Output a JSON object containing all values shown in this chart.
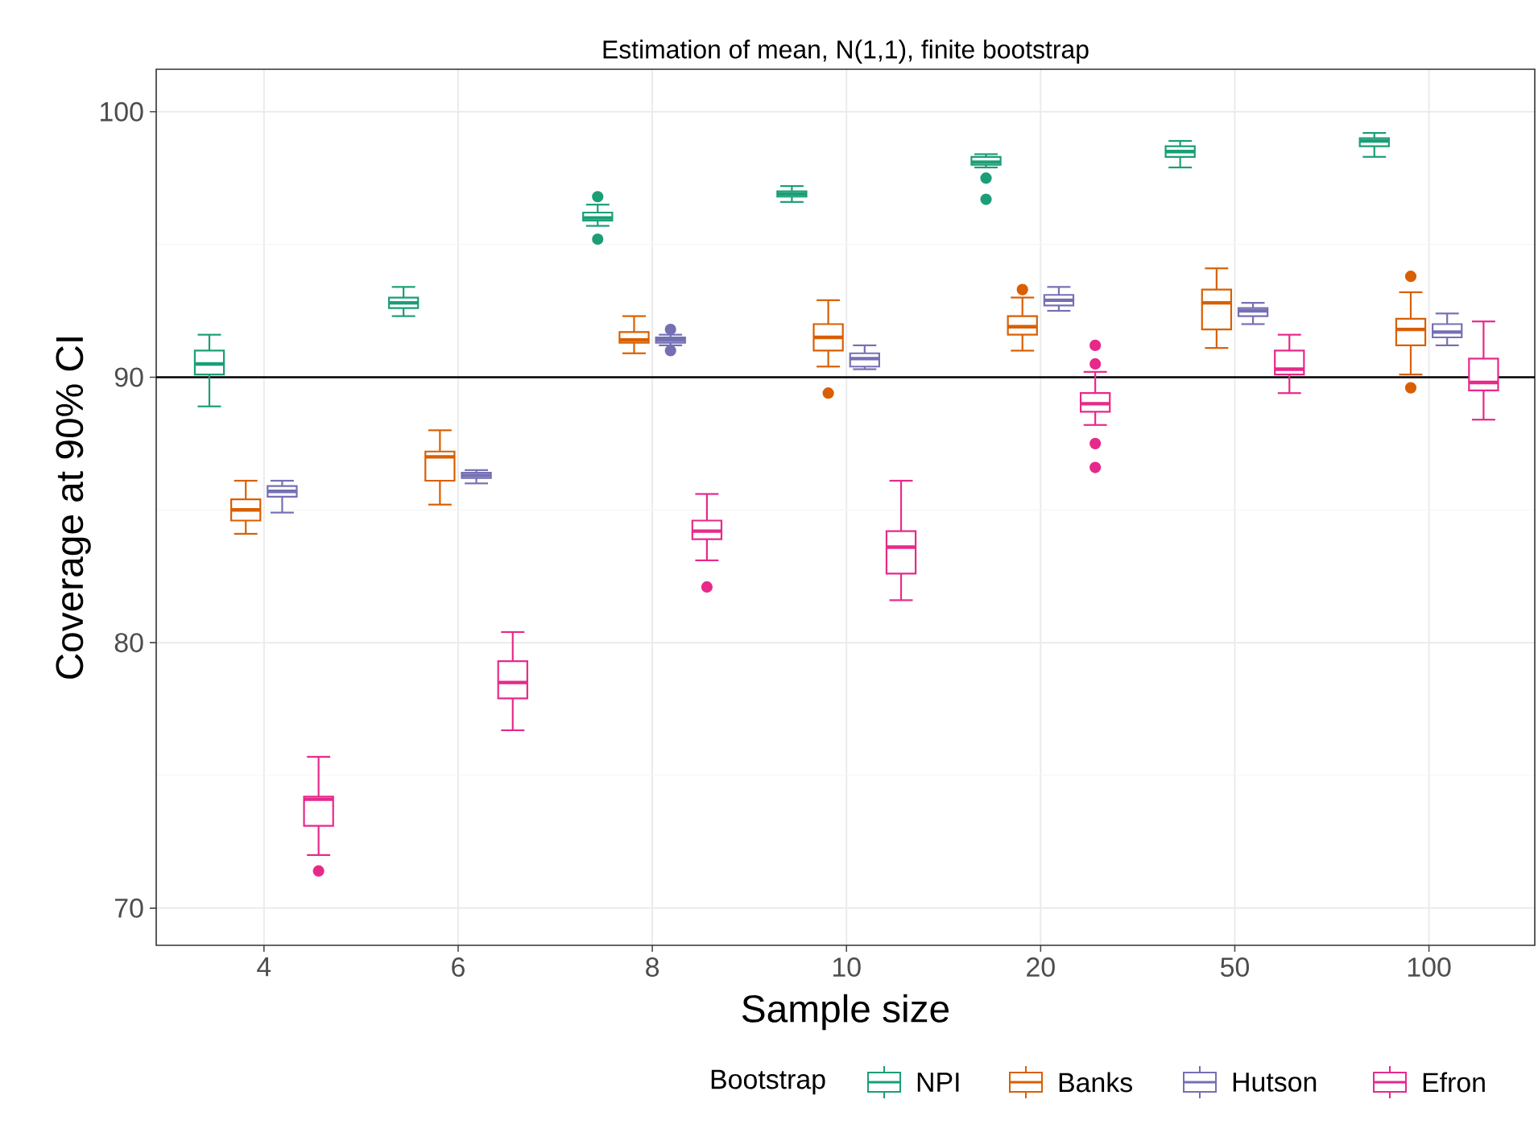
{
  "chart_data": {
    "type": "box",
    "title": "Estimation of mean, N(1,1), finite bootstrap",
    "xlabel": "Sample size",
    "ylabel": "Coverage at 90% CI",
    "legend_title": "Bootstrap",
    "legend": "bottom",
    "grid": true,
    "categories": [
      "4",
      "6",
      "8",
      "10",
      "20",
      "50",
      "100"
    ],
    "ylim": [
      68.6,
      101.6
    ],
    "yticks": [
      70,
      {
        "value": 75,
        "label": null
      },
      80,
      {
        "value": 85,
        "label": null
      },
      90,
      {
        "value": 95,
        "label": null
      },
      100
    ],
    "ref_lines": [
      {
        "axis": "y",
        "value": 90,
        "color": "#000000"
      }
    ],
    "series": [
      {
        "name": "NPI",
        "color": "#1b9e77",
        "boxes": [
          {
            "low": 88.9,
            "q1": 90.1,
            "median": 90.5,
            "q3": 91.0,
            "high": 91.6
          },
          {
            "low": 92.3,
            "q1": 92.6,
            "median": 92.8,
            "q3": 93.0,
            "high": 93.4
          },
          {
            "low": 95.7,
            "q1": 95.9,
            "median": 96.0,
            "q3": 96.2,
            "high": 96.5,
            "outliers": [
              96.8,
              95.2
            ]
          },
          {
            "low": 96.6,
            "q1": 96.8,
            "median": 96.9,
            "q3": 97.0,
            "high": 97.2
          },
          {
            "low": 97.9,
            "q1": 98.0,
            "median": 98.1,
            "q3": 98.3,
            "high": 98.4,
            "outliers": [
              97.5,
              96.7
            ]
          },
          {
            "low": 97.9,
            "q1": 98.3,
            "median": 98.5,
            "q3": 98.7,
            "high": 98.9
          },
          {
            "low": 98.3,
            "q1": 98.7,
            "median": 98.9,
            "q3": 99.0,
            "high": 99.2
          }
        ]
      },
      {
        "name": "Banks",
        "color": "#d95f02",
        "boxes": [
          {
            "low": 84.1,
            "q1": 84.6,
            "median": 85.0,
            "q3": 85.4,
            "high": 86.1
          },
          {
            "low": 85.2,
            "q1": 86.1,
            "median": 87.0,
            "q3": 87.2,
            "high": 88.0
          },
          {
            "low": 90.9,
            "q1": 91.3,
            "median": 91.4,
            "q3": 91.7,
            "high": 92.3
          },
          {
            "low": 90.4,
            "q1": 91.0,
            "median": 91.5,
            "q3": 92.0,
            "high": 92.9,
            "outliers": [
              89.4
            ]
          },
          {
            "low": 91.0,
            "q1": 91.6,
            "median": 91.9,
            "q3": 92.3,
            "high": 93.0,
            "outliers": [
              93.3
            ]
          },
          {
            "low": 91.1,
            "q1": 91.8,
            "median": 92.8,
            "q3": 93.3,
            "high": 94.1
          },
          {
            "low": 90.1,
            "q1": 91.2,
            "median": 91.8,
            "q3": 92.2,
            "high": 93.2,
            "outliers": [
              93.8,
              89.6
            ]
          }
        ]
      },
      {
        "name": "Hutson",
        "color": "#7570b3",
        "boxes": [
          {
            "low": 84.9,
            "q1": 85.5,
            "median": 85.7,
            "q3": 85.9,
            "high": 86.1
          },
          {
            "low": 86.0,
            "q1": 86.2,
            "median": 86.3,
            "q3": 86.4,
            "high": 86.5
          },
          {
            "low": 91.2,
            "q1": 91.3,
            "median": 91.4,
            "q3": 91.5,
            "high": 91.6,
            "outliers": [
              91.8,
              91.0
            ]
          },
          {
            "low": 90.3,
            "q1": 90.4,
            "median": 90.7,
            "q3": 90.9,
            "high": 91.2
          },
          {
            "low": 92.5,
            "q1": 92.7,
            "median": 92.9,
            "q3": 93.1,
            "high": 93.4
          },
          {
            "low": 92.0,
            "q1": 92.3,
            "median": 92.5,
            "q3": 92.6,
            "high": 92.8
          },
          {
            "low": 91.2,
            "q1": 91.5,
            "median": 91.7,
            "q3": 92.0,
            "high": 92.4
          }
        ]
      },
      {
        "name": "Efron",
        "color": "#e7298a",
        "boxes": [
          {
            "low": 72.0,
            "q1": 73.1,
            "median": 74.1,
            "q3": 74.2,
            "high": 75.7,
            "outliers": [
              71.4
            ]
          },
          {
            "low": 76.7,
            "q1": 77.9,
            "median": 78.5,
            "q3": 79.3,
            "high": 80.4
          },
          {
            "low": 83.1,
            "q1": 83.9,
            "median": 84.2,
            "q3": 84.6,
            "high": 85.6,
            "outliers": [
              82.1
            ]
          },
          {
            "low": 81.6,
            "q1": 82.6,
            "median": 83.6,
            "q3": 84.2,
            "high": 86.1
          },
          {
            "low": 88.2,
            "q1": 88.7,
            "median": 89.0,
            "q3": 89.4,
            "high": 90.2,
            "outliers": [
              91.2,
              90.5,
              87.5,
              86.6
            ]
          },
          {
            "low": 89.4,
            "q1": 90.1,
            "median": 90.3,
            "q3": 91.0,
            "high": 91.6
          },
          {
            "low": 88.4,
            "q1": 89.5,
            "median": 89.8,
            "q3": 90.7,
            "high": 92.1
          }
        ]
      }
    ]
  }
}
